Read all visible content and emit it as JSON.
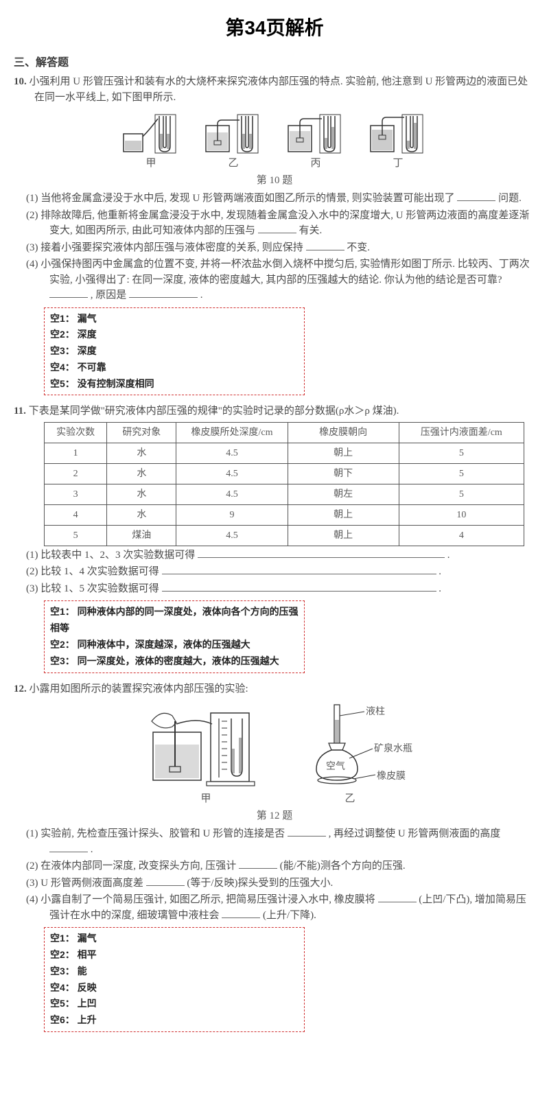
{
  "page_title": "第34页解析",
  "section_header": "三、解答题",
  "q10": {
    "num": "10.",
    "stem": "小强利用 U 形管压强计和装有水的大烧杯来探究液体内部压强的特点. 实验前, 他注意到 U 形管两边的液面已处在同一水平线上, 如下图甲所示.",
    "figs": {
      "a": "甲",
      "b": "乙",
      "c": "丙",
      "d": "丁",
      "title": "第 10 题"
    },
    "sub1": "(1) 当他将金属盒浸没于水中后, 发现 U 形管两端液面如图乙所示的情景, 则实验装置可能出现了",
    "sub1_tail": "问题.",
    "sub2": "(2) 排除故障后, 他重新将金属盒浸没于水中, 发现随着金属盒没入水中的深度增大, U 形管两边液面的高度差逐渐变大, 如图丙所示, 由此可知液体内部的压强与",
    "sub2_tail": "有关.",
    "sub3": "(3) 接着小强要探究液体内部压强与液体密度的关系, 则应保持",
    "sub3_tail": "不变.",
    "sub4": "(4) 小强保持图丙中金属盒的位置不变, 并将一杯浓盐水倒入烧杯中搅匀后, 实验情形如图丁所示. 比较丙、丁两次实验, 小强得出了: 在同一深度, 液体的密度越大, 其内部的压强越大的结论. 你认为他的结论是否可靠?",
    "sub4_mid": ", 原因是",
    "sub4_tail": ".",
    "answers": [
      "空1： 漏气",
      "空2： 深度",
      "空3： 深度",
      "空4： 不可靠",
      "空5： 没有控制深度相同"
    ]
  },
  "q11": {
    "num": "11.",
    "stem": "下表是某同学做\"研究液体内部压强的规律\"的实验时记录的部分数据(ρ水＞ρ 煤油).",
    "table": {
      "columns": [
        "实验次数",
        "研究对象",
        "橡皮膜所处深度/cm",
        "橡皮膜朝向",
        "压强计内液面差/cm"
      ],
      "rows": [
        [
          "1",
          "水",
          "4.5",
          "朝上",
          "5"
        ],
        [
          "2",
          "水",
          "4.5",
          "朝下",
          "5"
        ],
        [
          "3",
          "水",
          "4.5",
          "朝左",
          "5"
        ],
        [
          "4",
          "水",
          "9",
          "朝上",
          "10"
        ],
        [
          "5",
          "煤油",
          "4.5",
          "朝上",
          "4"
        ]
      ],
      "col_widths": [
        "90px",
        "100px",
        "160px",
        "160px",
        "180px"
      ]
    },
    "sub1": "(1) 比较表中 1、2、3 次实验数据可得",
    "sub2": "(2) 比较 1、4 次实验数据可得",
    "sub3": "(3) 比较 1、5 次实验数据可得",
    "tail": ".",
    "answers": [
      "空1： 同种液体内部的同一深度处，液体向各个方向的压强相等",
      "空2： 同种液体中，深度越深，液体的压强越大",
      "空3： 同一深度处，液体的密度越大，液体的压强越大"
    ]
  },
  "q12": {
    "num": "12.",
    "stem": "小露用如图所示的装置探究液体内部压强的实验:",
    "figs": {
      "a": "甲",
      "b": "乙",
      "title": "第 12 题",
      "labels": {
        "col": "液柱",
        "bottle": "矿泉水瓶",
        "air": "空气",
        "mem": "橡皮膜"
      }
    },
    "sub1": "(1) 实验前, 先检查压强计探头、胶管和 U 形管的连接是否",
    "sub1_mid": ", 再经过调整使 U 形管两侧液面的高度",
    "sub1_tail": ".",
    "sub2": "(2) 在液体内部同一深度, 改变探头方向, 压强计",
    "sub2_tail": "(能/不能)测各个方向的压强.",
    "sub3": "(3) U 形管两侧液面高度差",
    "sub3_tail": "(等于/反映)探头受到的压强大小.",
    "sub4": "(4) 小露自制了一个简易压强计, 如图乙所示, 把简易压强计浸入水中, 橡皮膜将",
    "sub4_mid": "(上凹/下凸), 增加简易压强计在水中的深度, 细玻璃管中液柱会",
    "sub4_tail": "(上升/下降).",
    "answers": [
      "空1： 漏气",
      "空2： 相平",
      "空3： 能",
      "空4： 反映",
      "空5： 上凹",
      "空6： 上升"
    ]
  },
  "colors": {
    "text": "#4a4a4a",
    "title": "#000000",
    "answer_border": "#d03030",
    "table_border": "#555555",
    "background": "#ffffff"
  }
}
